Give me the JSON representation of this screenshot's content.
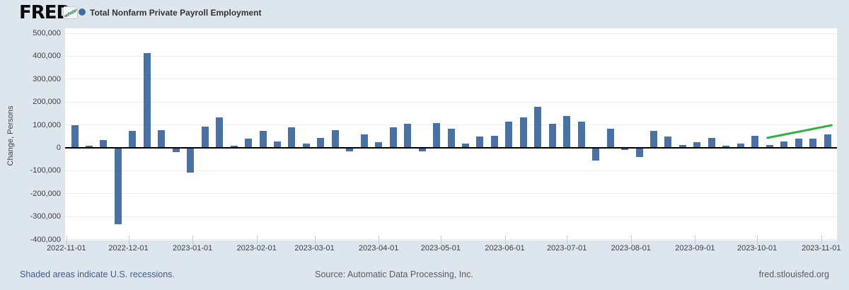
{
  "header": {
    "logo_text": "FRED",
    "series_title": "Total Nonfarm Private Payroll Employment"
  },
  "footer": {
    "recession_note": "Shaded areas indicate U.S. recessions.",
    "source": "Source: Automatic Data Processing, Inc.",
    "site": "fred.stlouisfed.org"
  },
  "colors": {
    "series": "#4872a6",
    "legend_dot": "#3a6ea8",
    "trend": "#2eb144",
    "page_bg": "#dde5ed",
    "plot_bg": "#ffffff",
    "grid": "#ededed",
    "zero_line": "#000000",
    "link": "#3b5b96"
  },
  "chart_data": {
    "type": "bar",
    "title": "Total Nonfarm Private Payroll Employment",
    "xlabel": "",
    "ylabel": "Change, Persons",
    "frequency": "weekly",
    "ylim": [
      -400000,
      500000
    ],
    "ytick_step": 100000,
    "grid": true,
    "legend_position": "top-left",
    "xtick_labels": [
      "2022-11-01",
      "2022-12-01",
      "2023-01-01",
      "2023-02-01",
      "2023-03-01",
      "2023-04-01",
      "2023-05-01",
      "2023-06-01",
      "2023-07-01",
      "2023-08-01",
      "2023-09-01",
      "2023-10-01",
      "2023-11-01"
    ],
    "dates": [
      "2022-11-05",
      "2022-11-12",
      "2022-11-19",
      "2022-11-26",
      "2022-12-03",
      "2022-12-10",
      "2022-12-17",
      "2022-12-24",
      "2022-12-31",
      "2023-01-07",
      "2023-01-14",
      "2023-01-21",
      "2023-01-28",
      "2023-02-04",
      "2023-02-11",
      "2023-02-18",
      "2023-02-25",
      "2023-03-04",
      "2023-03-11",
      "2023-03-18",
      "2023-03-25",
      "2023-04-01",
      "2023-04-08",
      "2023-04-15",
      "2023-04-22",
      "2023-04-29",
      "2023-05-06",
      "2023-05-13",
      "2023-05-20",
      "2023-05-27",
      "2023-06-03",
      "2023-06-10",
      "2023-06-17",
      "2023-06-24",
      "2023-07-01",
      "2023-07-08",
      "2023-07-15",
      "2023-07-22",
      "2023-07-29",
      "2023-08-05",
      "2023-08-12",
      "2023-08-19",
      "2023-08-26",
      "2023-09-02",
      "2023-09-09",
      "2023-09-16",
      "2023-09-23",
      "2023-09-30",
      "2023-10-07",
      "2023-10-14",
      "2023-10-21",
      "2023-10-28",
      "2023-11-04"
    ],
    "values": [
      100000,
      10000,
      35000,
      -330000,
      75000,
      415000,
      80000,
      -15000,
      -105000,
      95000,
      135000,
      10000,
      40000,
      75000,
      30000,
      90000,
      20000,
      45000,
      80000,
      -10000,
      60000,
      25000,
      90000,
      105000,
      -10000,
      110000,
      85000,
      20000,
      50000,
      55000,
      115000,
      135000,
      180000,
      105000,
      140000,
      115000,
      -50000,
      85000,
      -5000,
      -35000,
      75000,
      50000,
      15000,
      25000,
      45000,
      10000,
      20000,
      55000,
      15000,
      30000,
      40000,
      40000,
      60000
    ],
    "trend_line": {
      "start_date": "2023-10-06",
      "start_value": 45000,
      "end_date": "2023-11-06",
      "end_value": 100000
    }
  }
}
